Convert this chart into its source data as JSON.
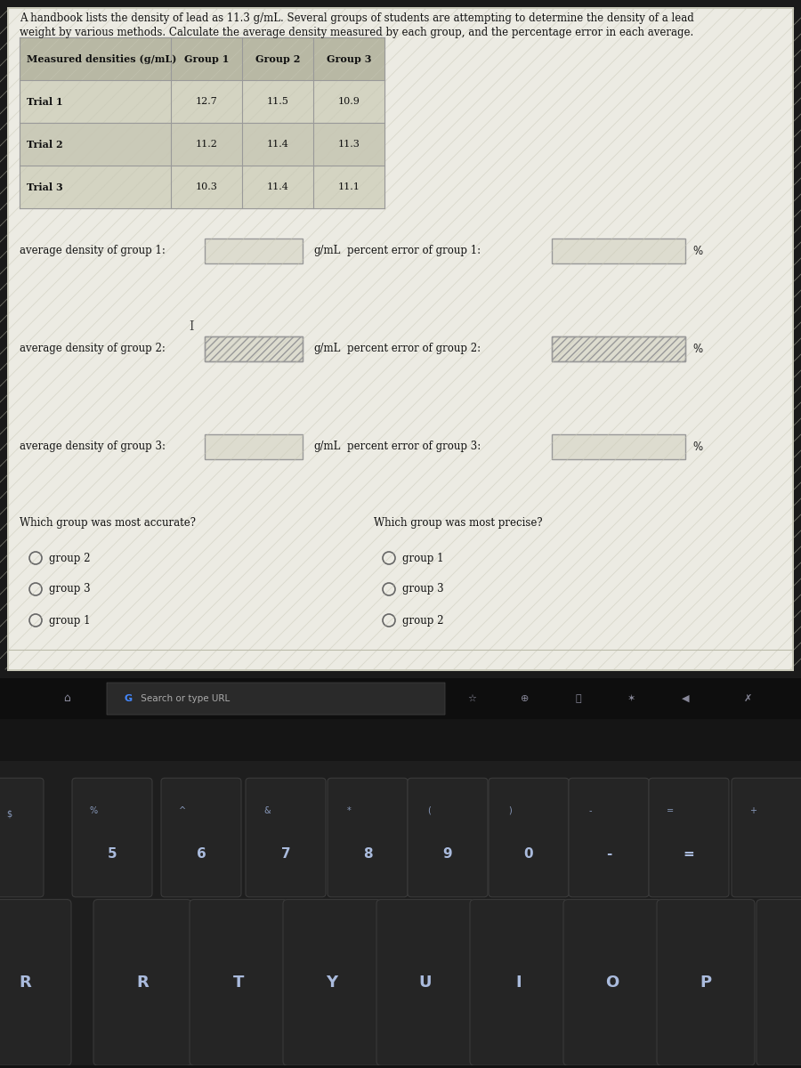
{
  "intro_line1": "A handbook lists the density of lead as 11.3 g/mL. Several groups of students are attempting to determine the density of a lead",
  "intro_line2": "weight by various methods. Calculate the average density measured by each group, and the percentage error in each average.",
  "table_header": [
    "Measured densities (g/mL)",
    "Group 1",
    "Group 2",
    "Group 3"
  ],
  "table_rows": [
    [
      "Trial 1",
      "12.7",
      "11.5",
      "10.9"
    ],
    [
      "Trial 2",
      "11.2",
      "11.4",
      "11.3"
    ],
    [
      "Trial 3",
      "10.3",
      "11.4",
      "11.1"
    ]
  ],
  "avg_labels": [
    "average density of group 1:",
    "average density of group 2:",
    "average density of group 3:"
  ],
  "pct_labels": [
    "percent error of group 1:",
    "percent error of group 2:",
    "percent error of group 3:"
  ],
  "gml_label": "g/mL",
  "pct_symbol": "%",
  "accurate_q": "Which group was most accurate?",
  "precise_q": "Which group was most precise?",
  "accurate_options": [
    "group 2",
    "group 3",
    "group 1"
  ],
  "precise_options": [
    "group 1",
    "group 3",
    "group 2"
  ],
  "touchbar_items": [
    "G Search or type URL",
    "☆",
    "⊕",
    "〈",
    "✱",
    "◄",
    "✗"
  ],
  "num_row_top": [
    "%",
    "^",
    "&",
    "*",
    "(",
    ")",
    "-",
    "+"
  ],
  "num_row_bot": [
    "5",
    "6",
    "7",
    "8",
    "9",
    "0",
    "-",
    ""
  ],
  "letter_row": [
    "R",
    "T",
    "Y",
    "U",
    "I",
    "O",
    "P"
  ],
  "screen_content_bg": "#f0efe8",
  "screen_outer_bg": "#c8c8b8",
  "webpage_bg": "#d8d8c8",
  "table_row_odd": "#d4d4c2",
  "table_row_even": "#cacab8",
  "table_header_bg": "#b8b8a4",
  "input_box_bg": "#deddd0",
  "input_box_border": "#999999",
  "stripe_bg": "#d0cfbe",
  "laptop_dark": "#1c1c1c",
  "touchbar_bg": "#111111",
  "key_face": "#252525",
  "key_border": "#3a3a3a",
  "key_text_light": "#8899bb",
  "key_text_num": "#aabbdd"
}
